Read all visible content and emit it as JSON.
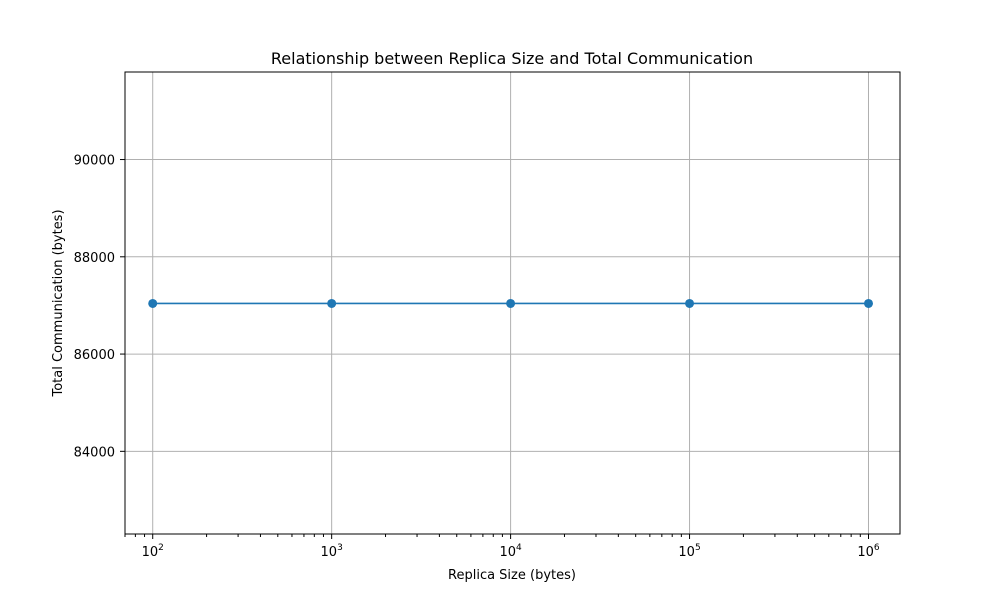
{
  "chart_data": {
    "type": "line",
    "title": "Relationship between Replica Size and Total Communication",
    "xlabel": "Replica Size (bytes)",
    "ylabel": "Total Communication (bytes)",
    "x_scale": "log",
    "xlim": [
      70,
      1500000
    ],
    "ylim": [
      82300,
      91800
    ],
    "x_ticks": [
      {
        "value": 100,
        "base": "10",
        "exponent": "2"
      },
      {
        "value": 1000,
        "base": "10",
        "exponent": "3"
      },
      {
        "value": 10000,
        "base": "10",
        "exponent": "4"
      },
      {
        "value": 100000,
        "base": "10",
        "exponent": "5"
      },
      {
        "value": 1000000,
        "base": "10",
        "exponent": "6"
      }
    ],
    "y_ticks": [
      {
        "value": 84000,
        "label": "84000"
      },
      {
        "value": 86000,
        "label": "86000"
      },
      {
        "value": 88000,
        "label": "88000"
      },
      {
        "value": 90000,
        "label": "90000"
      }
    ],
    "grid": true,
    "series": [
      {
        "color": "#1f77b4",
        "marker": "circle",
        "x": [
          100,
          1000,
          10000,
          100000,
          1000000
        ],
        "y": [
          87040,
          87040,
          87040,
          87040,
          87040
        ]
      }
    ]
  }
}
